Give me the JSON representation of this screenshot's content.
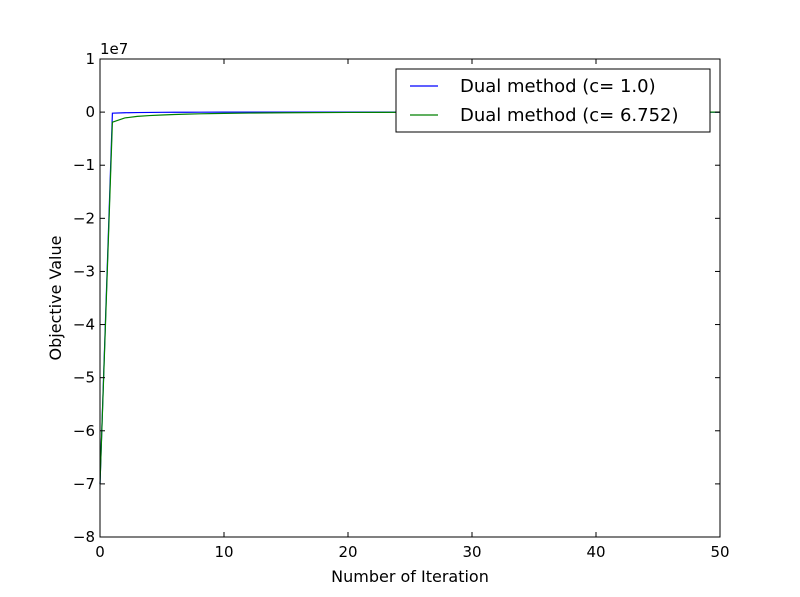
{
  "chart_data": {
    "type": "line",
    "title": "",
    "xlabel": "Number of Iteration",
    "ylabel": "Objective Value",
    "y_offset_label": "1e7",
    "xlim": [
      0,
      50
    ],
    "ylim": [
      -8,
      1
    ],
    "xticks": [
      0,
      10,
      20,
      30,
      40,
      50
    ],
    "xtick_labels": [
      "0",
      "10",
      "20",
      "30",
      "40",
      "50"
    ],
    "yticks": [
      1,
      0,
      -1,
      -2,
      -3,
      -4,
      -5,
      -6,
      -7,
      -8
    ],
    "ytick_labels": [
      "1",
      "0",
      "−1",
      "−2",
      "−3",
      "−4",
      "−5",
      "−6",
      "−7",
      "−8"
    ],
    "grid": false,
    "legend_position": "upper-right",
    "series": [
      {
        "name": "Dual method (c= 1.0)",
        "color": "#0000ff",
        "x": [
          0,
          1,
          2,
          3,
          4,
          5,
          6,
          7,
          8,
          10,
          15,
          20,
          30,
          40,
          50
        ],
        "y": [
          -7.0,
          -0.02,
          -0.012,
          -0.008,
          -0.006,
          -0.004,
          -0.003,
          -0.002,
          -0.0015,
          -0.001,
          -0.0005,
          -0.0002,
          0,
          0,
          0
        ]
      },
      {
        "name": "Dual method (c= 6.752)",
        "color": "#008000",
        "x": [
          0,
          1,
          2,
          3,
          4,
          5,
          6,
          7,
          8,
          10,
          12,
          15,
          20,
          25,
          30,
          40,
          50
        ],
        "y": [
          -7.0,
          -0.19,
          -0.11,
          -0.08,
          -0.065,
          -0.055,
          -0.045,
          -0.038,
          -0.032,
          -0.024,
          -0.018,
          -0.012,
          -0.006,
          -0.003,
          -0.001,
          0,
          0
        ]
      }
    ]
  }
}
